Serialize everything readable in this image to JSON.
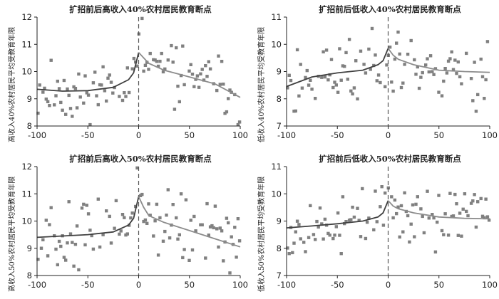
{
  "chart_data": [
    {
      "type": "scatter",
      "title": "扩招前后高收入40%农村居民教育断点",
      "xlabel": "",
      "ylabel": "高收入40%农村居民平均受教育年限",
      "xlim": [
        -100,
        100
      ],
      "ylim": [
        8,
        12
      ],
      "xticks": [
        "-100",
        "-50",
        "0",
        "50",
        "100"
      ],
      "yticks": [
        "8",
        "9",
        "10",
        "11",
        "12"
      ],
      "cutoff": 0,
      "fit_left": {
        "x": [
          -100,
          -75,
          -50,
          -25,
          -10,
          -5,
          0
        ],
        "y": [
          9.35,
          9.28,
          9.3,
          9.42,
          9.7,
          9.95,
          10.7
        ]
      },
      "fit_right": {
        "x": [
          0,
          5,
          10,
          25,
          50,
          75,
          100
        ],
        "y": [
          10.7,
          10.5,
          10.3,
          10.05,
          9.8,
          9.55,
          9.05
        ]
      },
      "scatter_seed": 11,
      "scatter_spread": 0.55,
      "grid": false
    },
    {
      "type": "scatter",
      "title": "扩招前后低收入40%农村居民教育断点",
      "xlabel": "",
      "ylabel": "低收入40%农村居民平均受教育年限",
      "xlim": [
        -100,
        100
      ],
      "ylim": [
        7,
        11
      ],
      "xticks": [
        "-100",
        "-50",
        "0",
        "50",
        "100"
      ],
      "yticks": [
        "7",
        "8",
        "9",
        "10",
        "11"
      ],
      "cutoff": 0,
      "fit_left": {
        "x": [
          -100,
          -75,
          -50,
          -25,
          -10,
          -5,
          0
        ],
        "y": [
          8.45,
          8.8,
          8.95,
          9.05,
          9.25,
          9.4,
          9.85
        ]
      },
      "fit_right": {
        "x": [
          0,
          5,
          10,
          25,
          50,
          75,
          100
        ],
        "y": [
          9.85,
          9.6,
          9.45,
          9.25,
          9.05,
          9.0,
          8.97
        ]
      },
      "scatter_seed": 23,
      "scatter_spread": 0.65,
      "grid": false
    },
    {
      "type": "scatter",
      "title": "扩招前后高收入50%农村居民教育断点",
      "xlabel": "",
      "ylabel": "高收入50%农村居民平均受教育年限",
      "xlim": [
        -100,
        100
      ],
      "ylim": [
        8,
        12
      ],
      "xticks": [
        "-100",
        "-50",
        "0",
        "50",
        "100"
      ],
      "yticks": [
        "8",
        "9",
        "10",
        "11",
        "12"
      ],
      "cutoff": 0,
      "fit_left": {
        "x": [
          -100,
          -75,
          -50,
          -25,
          -10,
          -5,
          0
        ],
        "y": [
          9.4,
          9.45,
          9.5,
          9.6,
          9.85,
          10.1,
          10.9
        ]
      },
      "fit_right": {
        "x": [
          0,
          5,
          10,
          25,
          50,
          75,
          100
        ],
        "y": [
          10.9,
          10.5,
          10.2,
          9.95,
          9.65,
          9.35,
          9.05
        ]
      },
      "scatter_seed": 37,
      "scatter_spread": 0.6,
      "grid": false
    },
    {
      "type": "scatter",
      "title": "扩招前后低收入50%农村居民教育断点",
      "xlabel": "",
      "ylabel": "低收入50%农村居民平均受教育年限",
      "xlim": [
        -100,
        100
      ],
      "ylim": [
        7,
        11
      ],
      "xticks": [
        "-100",
        "-50",
        "0",
        "50",
        "100"
      ],
      "yticks": [
        "7",
        "8",
        "9",
        "10",
        "11"
      ],
      "cutoff": 0,
      "fit_left": {
        "x": [
          -100,
          -75,
          -50,
          -25,
          -10,
          -5,
          0
        ],
        "y": [
          8.75,
          8.82,
          8.9,
          9.0,
          9.15,
          9.3,
          9.75
        ]
      },
      "fit_right": {
        "x": [
          0,
          5,
          10,
          25,
          50,
          75,
          100
        ],
        "y": [
          9.75,
          9.55,
          9.45,
          9.3,
          9.15,
          9.1,
          9.08
        ]
      },
      "scatter_seed": 53,
      "scatter_spread": 0.55,
      "grid": false
    }
  ],
  "colors": {
    "points": "#808080",
    "fit_left": "#404040",
    "fit_right": "#8c8c8c",
    "axis": "#222222",
    "cutoff": "#555555"
  }
}
